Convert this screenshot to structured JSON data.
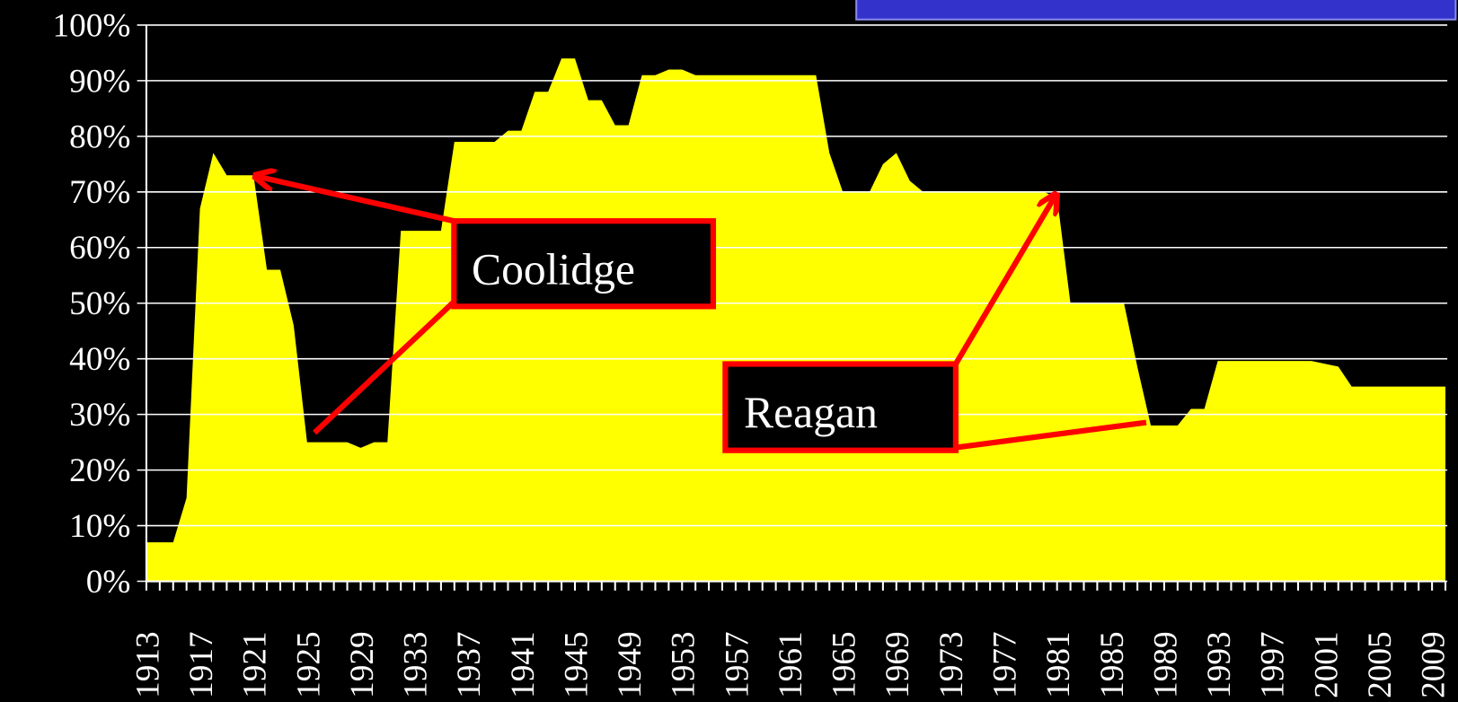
{
  "chart_data": {
    "type": "area",
    "color": "#ffff00",
    "grid": true,
    "x": [
      1913,
      1914,
      1915,
      1916,
      1917,
      1918,
      1919,
      1920,
      1921,
      1922,
      1923,
      1924,
      1925,
      1926,
      1927,
      1928,
      1929,
      1930,
      1931,
      1932,
      1933,
      1934,
      1935,
      1936,
      1937,
      1938,
      1939,
      1940,
      1941,
      1942,
      1943,
      1944,
      1945,
      1946,
      1947,
      1948,
      1949,
      1950,
      1951,
      1952,
      1953,
      1954,
      1955,
      1956,
      1957,
      1958,
      1959,
      1960,
      1961,
      1962,
      1963,
      1964,
      1965,
      1966,
      1967,
      1968,
      1969,
      1970,
      1971,
      1972,
      1973,
      1974,
      1975,
      1976,
      1977,
      1978,
      1979,
      1980,
      1981,
      1982,
      1983,
      1984,
      1985,
      1986,
      1987,
      1988,
      1989,
      1990,
      1991,
      1992,
      1993,
      1994,
      1995,
      1996,
      1997,
      1998,
      1999,
      2000,
      2001,
      2002,
      2003,
      2004,
      2005,
      2006,
      2007,
      2008,
      2009,
      2010
    ],
    "values": [
      7,
      7,
      7,
      15,
      67,
      77,
      73,
      73,
      73,
      56,
      56,
      46,
      25,
      25,
      25,
      25,
      24,
      25,
      25,
      63,
      63,
      63,
      63,
      79,
      79,
      79,
      79,
      81,
      81,
      88,
      88,
      94,
      94,
      86.5,
      86.5,
      82,
      82,
      91,
      91,
      92,
      92,
      91,
      91,
      91,
      91,
      91,
      91,
      91,
      91,
      91,
      91,
      77,
      70,
      70,
      70,
      75,
      77,
      72,
      70,
      70,
      70,
      70,
      70,
      70,
      70,
      70,
      70,
      70,
      69,
      50,
      50,
      50,
      50,
      50,
      38.5,
      28,
      28,
      28,
      31,
      31,
      39.6,
      39.6,
      39.6,
      39.6,
      39.6,
      39.6,
      39.6,
      39.6,
      39.1,
      38.6,
      35,
      35,
      35,
      35,
      35,
      35,
      35,
      35
    ],
    "xlim": [
      1913,
      2010
    ],
    "xticks": [
      1913,
      1917,
      1921,
      1925,
      1929,
      1933,
      1937,
      1941,
      1945,
      1949,
      1953,
      1957,
      1961,
      1965,
      1969,
      1973,
      1977,
      1981,
      1985,
      1989,
      1993,
      1997,
      2001,
      2005,
      2009
    ],
    "ylim": [
      0,
      100
    ],
    "yticks": [
      {
        "value": 0,
        "label": "0%"
      },
      {
        "value": 10,
        "label": "10%"
      },
      {
        "value": 20,
        "label": "20%"
      },
      {
        "value": 30,
        "label": "30%"
      },
      {
        "value": 40,
        "label": "40%"
      },
      {
        "value": 50,
        "label": "50%"
      },
      {
        "value": 60,
        "label": "60%"
      },
      {
        "value": 70,
        "label": "70%"
      },
      {
        "value": 80,
        "label": "80%"
      },
      {
        "value": 90,
        "label": "90%"
      },
      {
        "value": 100,
        "label": "100%"
      }
    ],
    "annotations": [
      "Coolidge",
      "Reagan"
    ]
  }
}
